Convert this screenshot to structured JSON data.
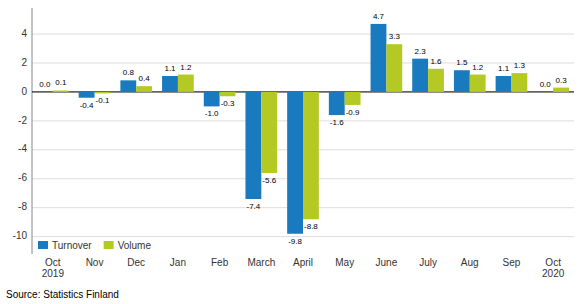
{
  "chart_data": {
    "type": "bar",
    "categories": [
      "Oct\n2019",
      "Nov",
      "Dec",
      "Jan",
      "Feb",
      "March",
      "April",
      "May",
      "June",
      "July",
      "Aug",
      "Sep",
      "Oct\n2020"
    ],
    "series": [
      {
        "name": "Turnover",
        "color": "#1a7abf",
        "values": [
          0.0,
          -0.4,
          0.8,
          1.1,
          -1.0,
          -7.4,
          -9.8,
          -1.6,
          4.7,
          2.3,
          1.5,
          1.1,
          0.0
        ],
        "value_labels": [
          "0.0",
          "-0.4",
          "0.8",
          "1.1",
          "-1.0",
          "-7.4",
          "-9.8",
          "-1.6",
          "4.7",
          "2.3",
          "1.5",
          "1.1",
          "0.0"
        ]
      },
      {
        "name": "Volume",
        "color": "#b5c924",
        "values": [
          0.1,
          -0.1,
          0.4,
          1.2,
          -0.3,
          -5.6,
          -8.8,
          -0.9,
          3.3,
          1.6,
          1.2,
          1.3,
          0.3
        ],
        "value_labels": [
          "0.1",
          "-0.1",
          "0.4",
          "1.2",
          "-0.3",
          "-5.6",
          "-8.8",
          "-0.9",
          "3.3",
          "1.6",
          "1.2",
          "1.3",
          "0.3"
        ]
      }
    ],
    "ylim": [
      -11.2,
      5.8
    ],
    "yticks": [
      -10,
      -8,
      -6,
      -4,
      -2,
      0,
      2,
      4
    ],
    "grid": true,
    "legend": "lower left",
    "data_labels": true,
    "annotations": [
      "Source: Statistics Finland"
    ]
  }
}
